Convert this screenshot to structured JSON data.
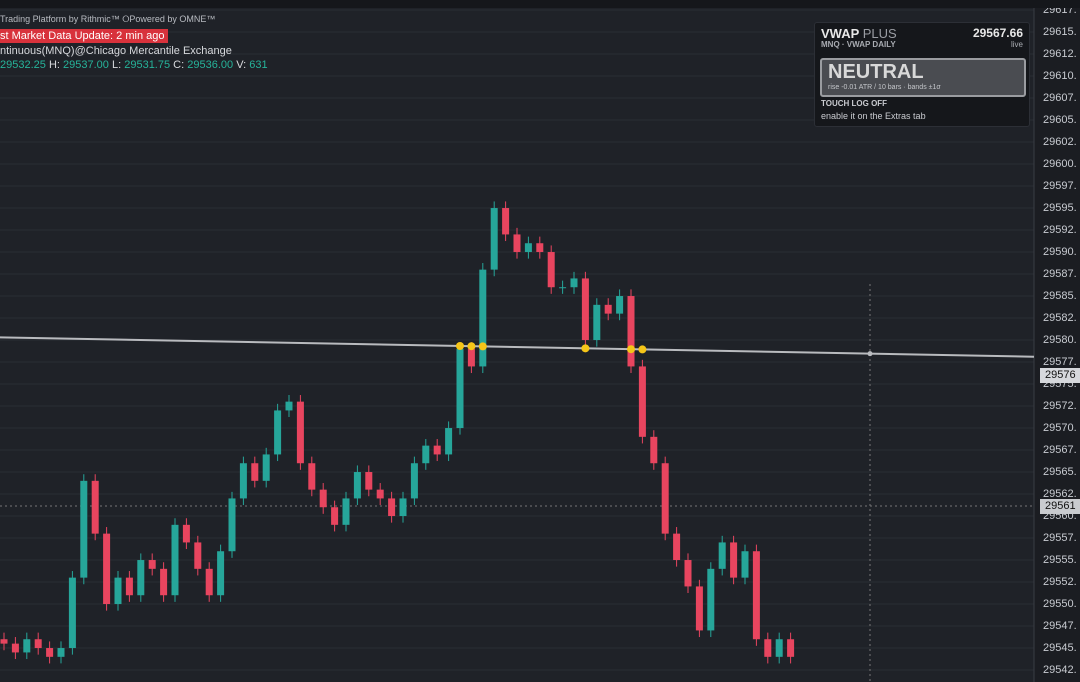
{
  "header": {
    "platform": "Trading Platform by Rithmic™ ⭘Powered by OMNE™",
    "update": "st Market Data Update: 2 min ago",
    "instrument": "ntinuous(MNQ)@Chicago Mercantile Exchange",
    "ohlcv": [
      "29532.25",
      "H:",
      "29537.00",
      "L:",
      "29531.75",
      "C:",
      "29536.00",
      "V:",
      "631"
    ]
  },
  "panel": {
    "title": "VWAP",
    "title2": "PLUS",
    "price": "29567.66",
    "subtitle": "MNQ · VWAP DAILY",
    "status": "live",
    "state": "NEUTRAL",
    "detail": "rise -0.01 ATR / 10 bars · bands ±1σ",
    "log": "TOUCH LOG OFF",
    "hint": "enable it on the Extras tab"
  },
  "price_labels": {
    "last": "29576",
    "crosshair": "29561"
  },
  "chart_data": {
    "type": "candlestick",
    "open": [
      29546,
      29545.5,
      29544.5,
      29546,
      29545,
      29544,
      29545,
      29553,
      29564,
      29558,
      29550,
      29553,
      29551,
      29555,
      29554,
      29551,
      29559,
      29557,
      29554,
      29551,
      29556,
      29562,
      29566,
      29564,
      29567,
      29572,
      29573,
      29566,
      29563,
      29561,
      29559,
      29562,
      29565,
      29563,
      29562,
      29560,
      29562,
      29566,
      29568,
      29567,
      29570,
      29579,
      29577,
      29588,
      29595,
      29592,
      29590,
      29591,
      29590,
      29586,
      29586,
      29587,
      29580,
      29584,
      29583,
      29585,
      29577,
      29569,
      29566,
      29558,
      29555,
      29552,
      29547,
      29554,
      29557,
      29553,
      29556,
      29546,
      29544,
      29546
    ],
    "high": [
      29546.75,
      29546.25,
      29546.75,
      29546.75,
      29545.75,
      29545.75,
      29553.75,
      29564.75,
      29564.75,
      29558.75,
      29553.75,
      29553.75,
      29555.75,
      29555.75,
      29554.75,
      29559.75,
      29559.75,
      29557.75,
      29554.75,
      29556.75,
      29562.75,
      29566.75,
      29566.75,
      29567.75,
      29572.75,
      29573.75,
      29573.75,
      29566.75,
      29563.75,
      29561.75,
      29562.75,
      29565.75,
      29565.75,
      29563.75,
      29562.75,
      29562.75,
      29566.75,
      29568.75,
      29568.75,
      29570.75,
      29579.75,
      29579.75,
      29588.75,
      29595.75,
      29595.75,
      29592.75,
      29591.75,
      29591.75,
      29590.75,
      29586.75,
      29587.75,
      29587.75,
      29584.75,
      29584.75,
      29585.75,
      29585.75,
      29577.75,
      29569.75,
      29566.75,
      29558.75,
      29555.75,
      29552.75,
      29554.75,
      29557.75,
      29557.75,
      29556.75,
      29556.75,
      29546.75,
      29546.75,
      29546.75
    ],
    "low": [
      29544.75,
      29543.75,
      29543.75,
      29544.25,
      29543.25,
      29543.25,
      29544.25,
      29552.25,
      29557.25,
      29549.25,
      29549.25,
      29550.25,
      29550.25,
      29553.25,
      29550.25,
      29550.25,
      29556.25,
      29553.25,
      29550.25,
      29550.25,
      29555.25,
      29561.25,
      29563.25,
      29563.25,
      29566.25,
      29571.25,
      29565.25,
      29562.25,
      29560.25,
      29558.25,
      29558.25,
      29561.25,
      29562.25,
      29561.25,
      29559.25,
      29559.25,
      29561.25,
      29565.25,
      29566.25,
      29566.25,
      29569.25,
      29576.25,
      29576.25,
      29587.25,
      29591.25,
      29589.25,
      29589.25,
      29589.25,
      29585.25,
      29585.25,
      29585.25,
      29579.25,
      29579.25,
      29582.25,
      29582.25,
      29576.25,
      29568.25,
      29565.25,
      29557.25,
      29554.25,
      29551.25,
      29546.25,
      29546.25,
      29553.25,
      29552.25,
      29552.25,
      29545.25,
      29543.25,
      29543.25,
      29543.25
    ],
    "close": [
      29545.5,
      29544.5,
      29546,
      29545,
      29544,
      29545,
      29553,
      29564,
      29558,
      29550,
      29553,
      29551,
      29555,
      29554,
      29551,
      29559,
      29557,
      29554,
      29551,
      29556,
      29562,
      29566,
      29564,
      29567,
      29572,
      29573,
      29566,
      29563,
      29561,
      29559,
      29562,
      29565,
      29563,
      29562,
      29560,
      29562,
      29566,
      29568,
      29567,
      29570,
      29579,
      29577,
      29588,
      29595,
      29592,
      29590,
      29591,
      29590,
      29586,
      29586,
      29587,
      29580,
      29584,
      29583,
      29585,
      29577,
      29569,
      29566,
      29558,
      29555,
      29552,
      29547,
      29554,
      29557,
      29553,
      29556,
      29546,
      29544,
      29546,
      29544
    ],
    "vwap": [
      29580.3,
      29578.1
    ],
    "touches": [
      40,
      41,
      42,
      51,
      55,
      56
    ],
    "up_color": "#26a69a",
    "down_color": "#e8455f",
    "vwap_color": "#b9bbbf",
    "ylim": [
      29541.14,
      29618.64
    ],
    "yticks": [
      {
        "value": 29617.5,
        "label": "29617."
      },
      {
        "value": 29615,
        "label": "29615."
      },
      {
        "value": 29612.5,
        "label": "29612."
      },
      {
        "value": 29610,
        "label": "29610."
      },
      {
        "value": 29607.5,
        "label": "29607."
      },
      {
        "value": 29605,
        "label": "29605."
      },
      {
        "value": 29602.5,
        "label": "29602."
      },
      {
        "value": 29600,
        "label": "29600."
      },
      {
        "value": 29597.5,
        "label": "29597."
      },
      {
        "value": 29595,
        "label": "29595."
      },
      {
        "value": 29592.5,
        "label": "29592."
      },
      {
        "value": 29590,
        "label": "29590."
      },
      {
        "value": 29587.5,
        "label": "29587."
      },
      {
        "value": 29585,
        "label": "29585."
      },
      {
        "value": 29582.5,
        "label": "29582."
      },
      {
        "value": 29580,
        "label": "29580."
      },
      {
        "value": 29577.5,
        "label": "29577."
      },
      {
        "value": 29575,
        "label": "29575."
      },
      {
        "value": 29572.5,
        "label": "29572."
      },
      {
        "value": 29570,
        "label": "29570."
      },
      {
        "value": 29567.5,
        "label": "29567."
      },
      {
        "value": 29565,
        "label": "29565."
      },
      {
        "value": 29562.5,
        "label": "29562."
      },
      {
        "value": 29560,
        "label": "29560."
      },
      {
        "value": 29557.5,
        "label": "29557."
      },
      {
        "value": 29555,
        "label": "29555."
      },
      {
        "value": 29552.5,
        "label": "29552."
      },
      {
        "value": 29550,
        "label": "29550."
      },
      {
        "value": 29547.5,
        "label": "29547."
      },
      {
        "value": 29545,
        "label": "29545."
      },
      {
        "value": 29542.5,
        "label": "29542."
      }
    ],
    "grid": true
  }
}
